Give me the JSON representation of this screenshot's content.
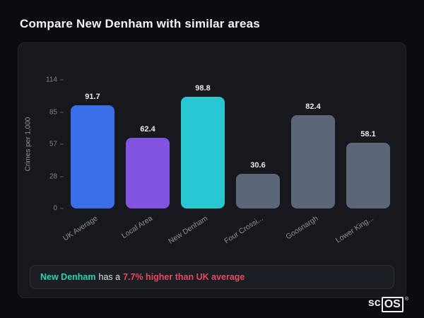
{
  "page": {
    "title": "Compare New Denham with similar areas",
    "background": "#0b0c0f",
    "card_background": "#17181d"
  },
  "chart_data": {
    "type": "bar",
    "title": "",
    "xlabel": "",
    "ylabel": "Crimes per 1,000",
    "categories": [
      "UK Average",
      "Local Area",
      "New Denham",
      "Four Crossi...",
      "Goosnargh",
      "Lower King..."
    ],
    "values": [
      91.7,
      62.4,
      98.8,
      30.6,
      82.4,
      58.1
    ],
    "bar_colors": [
      "#3a6ee8",
      "#8153de",
      "#28c7d4",
      "#5b6678",
      "#5b6678",
      "#5b6678"
    ],
    "yticks": [
      114,
      85,
      57,
      28,
      0
    ],
    "ylim": [
      0,
      114
    ],
    "grid": false,
    "legend": false
  },
  "note": {
    "area_name": "New Denham",
    "separator_text": "has a",
    "stat_text": "7.7% higher than UK average",
    "area_color": "#2dd4a8",
    "stat_color": "#e8475c"
  },
  "logo": {
    "prefix": "sc",
    "suffix": "OS",
    "registered": "®"
  }
}
